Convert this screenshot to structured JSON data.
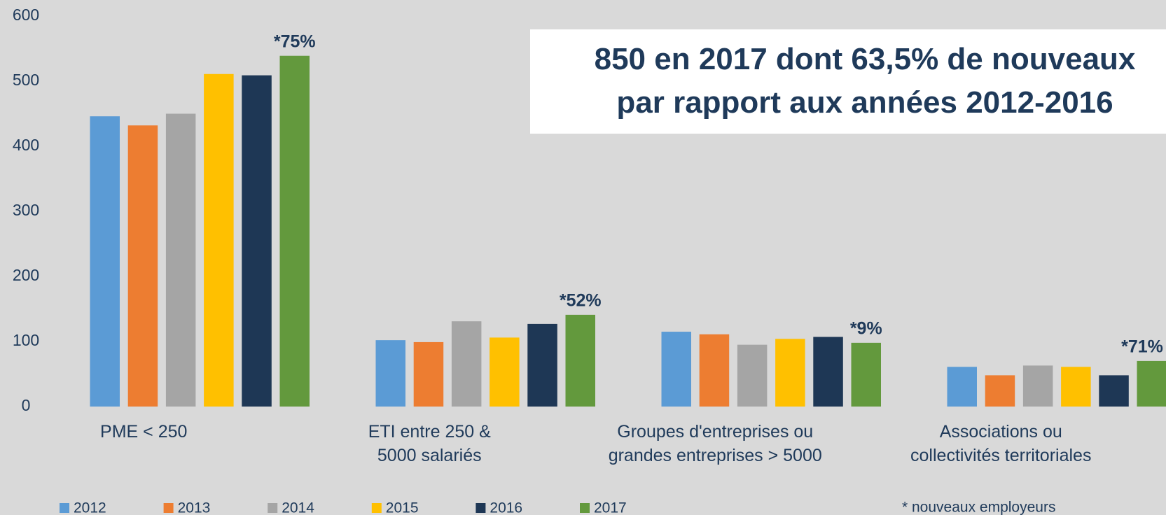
{
  "chart_data": {
    "type": "bar",
    "title": "850 en 2017 dont 63,5% de nouveaux\npar rapport aux années 2012-2016",
    "categories": [
      "PME < 250",
      "ETI entre 250 &\n5000 salariés",
      "Groupes d'entreprises ou\ngrandes entreprises > 5000",
      "Associations ou\ncollectivités territoriales"
    ],
    "series": [
      {
        "name": "2012",
        "color": "#5b9bd5",
        "values": [
          446,
          102,
          115,
          61
        ]
      },
      {
        "name": "2013",
        "color": "#ed7d31",
        "values": [
          432,
          99,
          111,
          48
        ]
      },
      {
        "name": "2014",
        "color": "#a5a5a5",
        "values": [
          450,
          131,
          95,
          63
        ]
      },
      {
        "name": "2015",
        "color": "#ffc000",
        "values": [
          511,
          106,
          104,
          61
        ]
      },
      {
        "name": "2016",
        "color": "#1e3755",
        "values": [
          509,
          127,
          107,
          48
        ]
      },
      {
        "name": "2017",
        "color": "#63993d",
        "values": [
          539,
          141,
          98,
          70
        ]
      }
    ],
    "annotations": [
      "*75%",
      "*52%",
      "*9%",
      "*71%"
    ],
    "footnote": "* nouveaux employeurs",
    "ylim": [
      0,
      600
    ],
    "yticks": [
      0,
      100,
      200,
      300,
      400,
      500,
      600
    ],
    "grid": false
  }
}
